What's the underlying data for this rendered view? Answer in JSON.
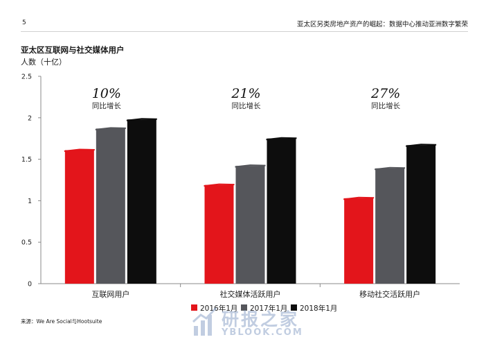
{
  "header": {
    "page_number": "5",
    "report_title": "亚太区另类房地产资产的崛起：数据中心推动亚洲数字繁荣"
  },
  "footer": {
    "source": "来源：We Are Social与Hootsuite"
  },
  "watermark": {
    "cn": "研报之家",
    "en": "YBLOOK.COM"
  },
  "colors": {
    "series_2016": "#e3151b",
    "series_2017": "#55565b",
    "series_2018": "#0d0d0d"
  },
  "chart_data": {
    "type": "bar",
    "title": "亚太区互联网与社交媒体用户",
    "ylabel": "人数（十亿）",
    "xlabel": "",
    "categories": [
      "互联网用户",
      "社交媒体活跃用户",
      "移动社交活跃用户"
    ],
    "series": [
      {
        "name": "2016年1月",
        "values": [
          1.61,
          1.19,
          1.03
        ]
      },
      {
        "name": "2017年1月",
        "values": [
          1.87,
          1.42,
          1.39
        ]
      },
      {
        "name": "2018年1月",
        "values": [
          1.98,
          1.75,
          1.67
        ]
      }
    ],
    "ylim": [
      0,
      2.5
    ],
    "yticks": [
      "0",
      "0.5",
      "1",
      "1.5",
      "2",
      "2.5"
    ],
    "annotations": [
      {
        "percent": "10%",
        "label": "同比增长"
      },
      {
        "percent": "21%",
        "label": "同比增长"
      },
      {
        "percent": "27%",
        "label": "同比增长"
      }
    ],
    "legend_position": "bottom",
    "grid": false
  }
}
